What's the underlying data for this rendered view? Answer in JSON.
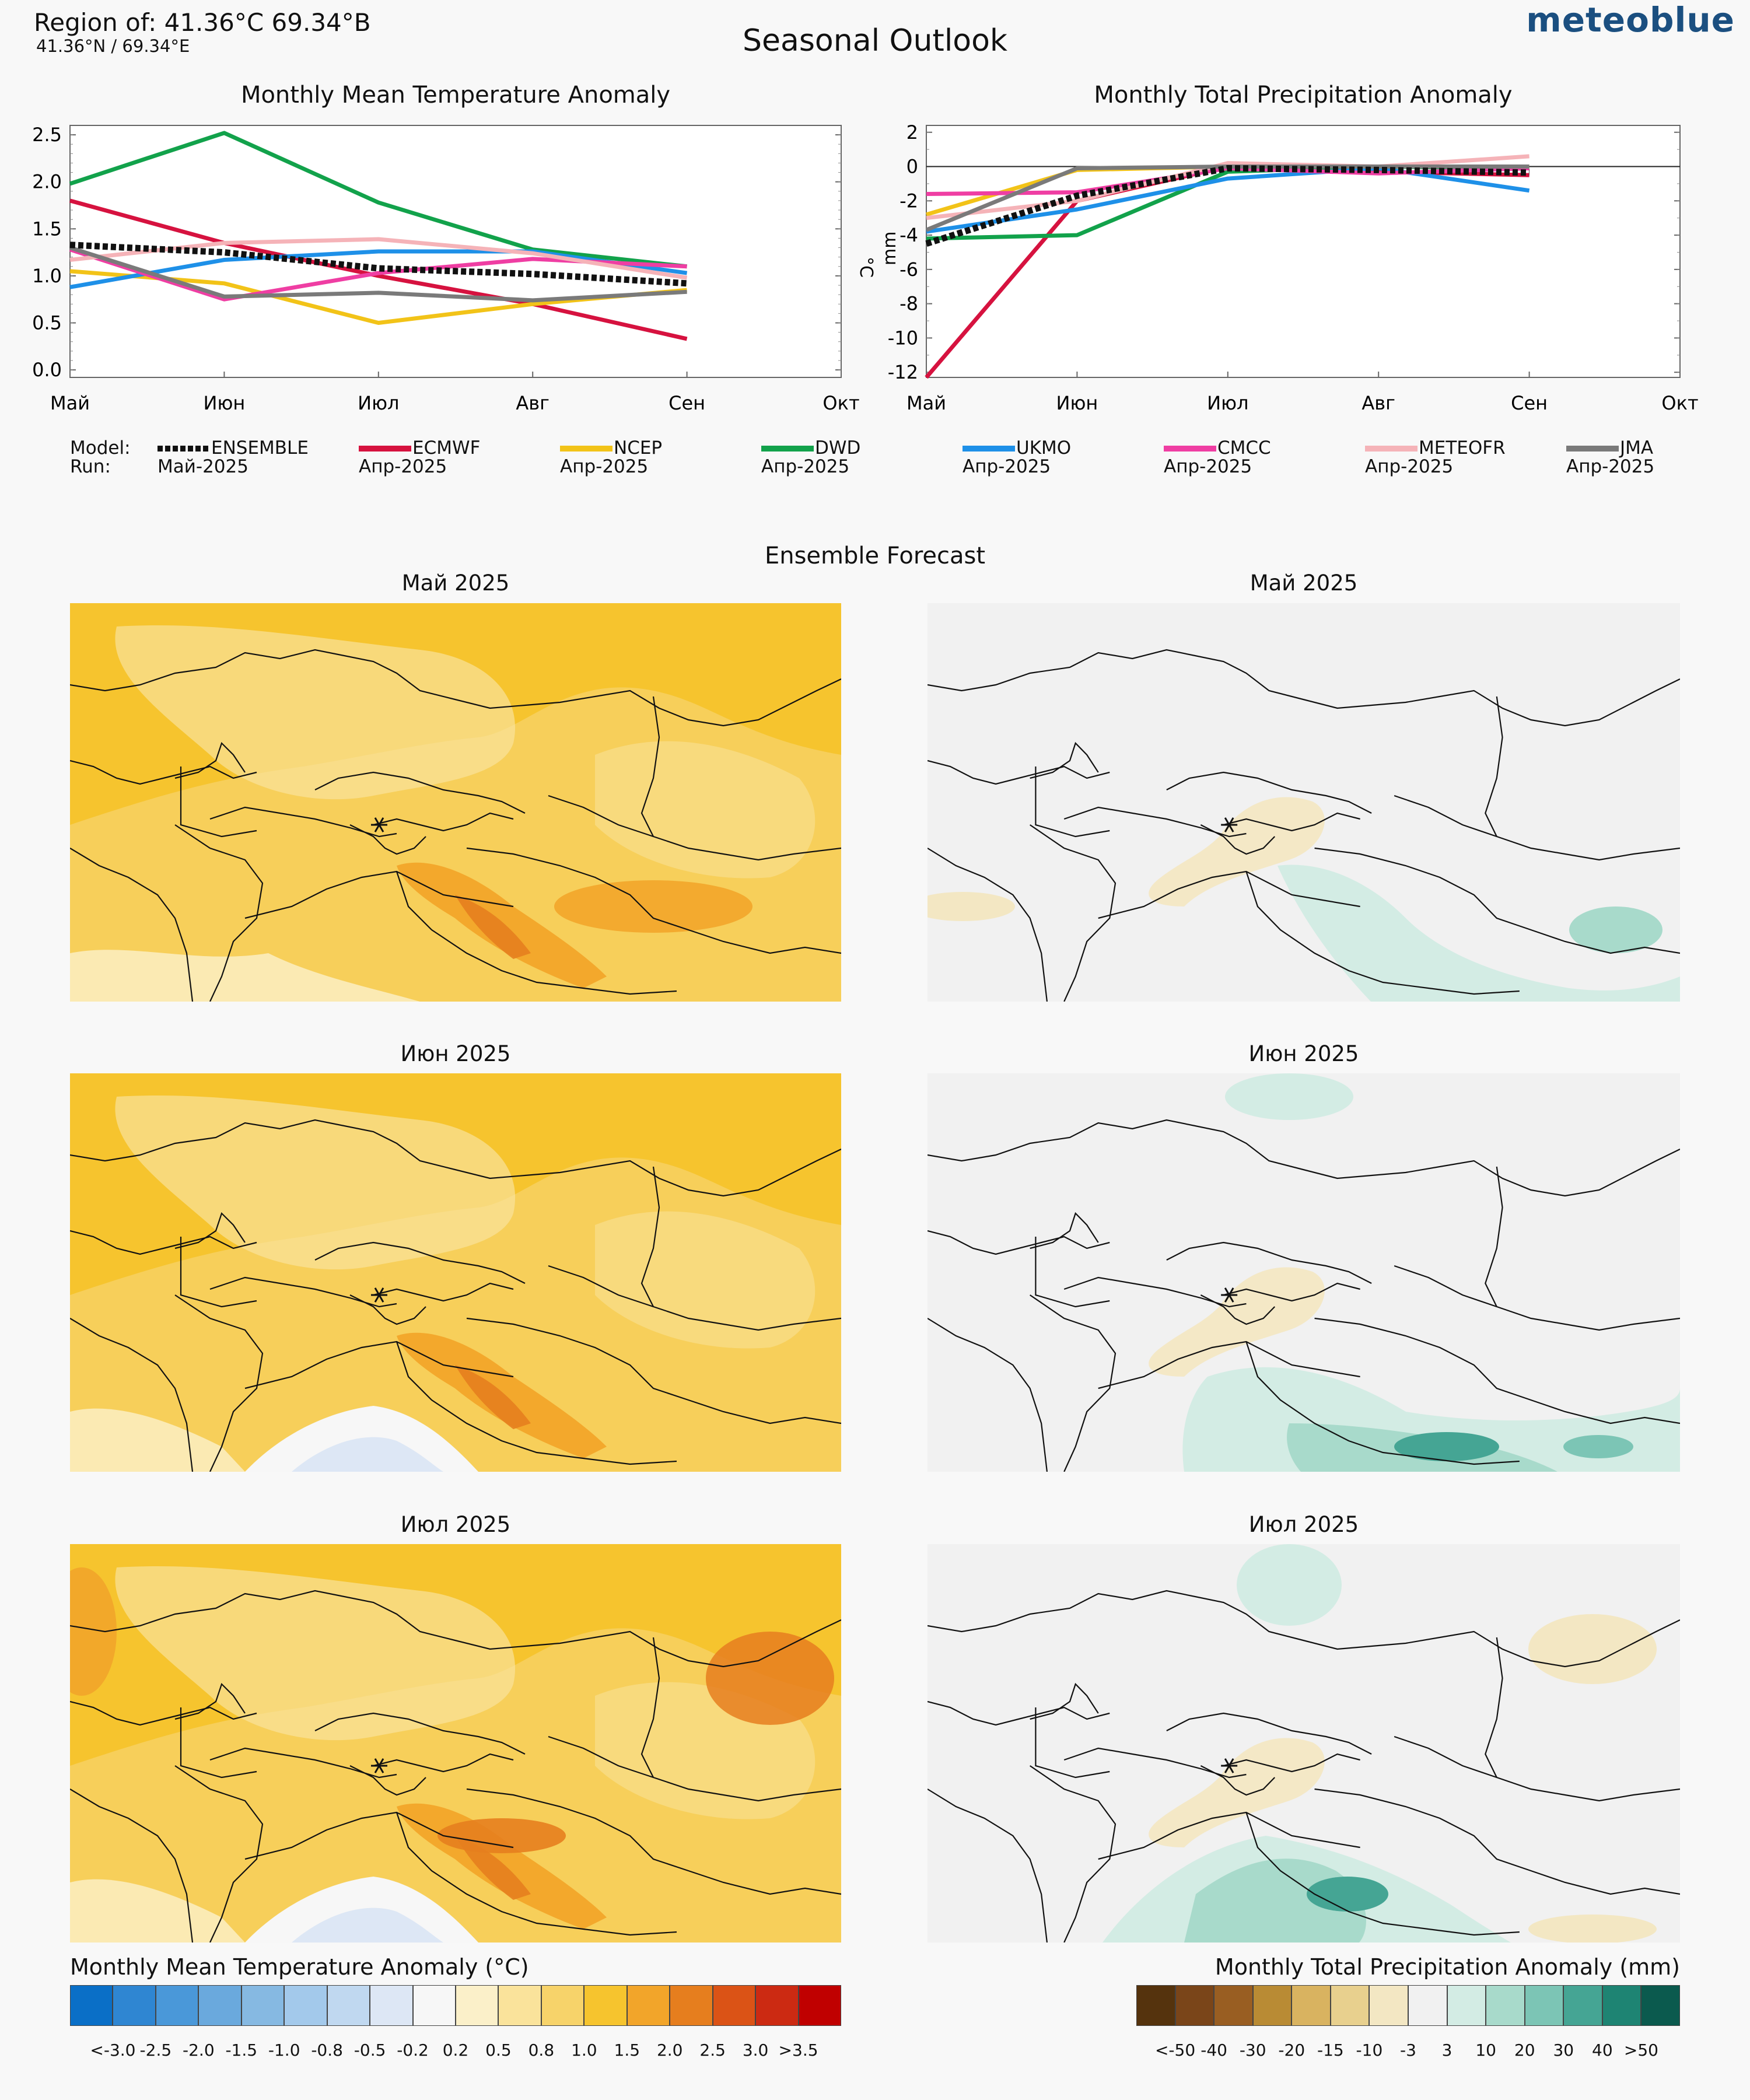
{
  "header": {
    "region": "Region of: 41.36°C 69.34°B",
    "coords": "41.36°N / 69.34°E",
    "title": "Seasonal Outlook",
    "brand": "meteoblue"
  },
  "months": [
    "Май",
    "Июн",
    "Июл",
    "Авг",
    "Сен",
    "Окт"
  ],
  "legend": {
    "model_label": "Model:",
    "run_label": "Run:",
    "models": [
      {
        "name": "ENSEMBLE",
        "run": "Май-2025",
        "color": "#111111",
        "dashed": true
      },
      {
        "name": "ECMWF",
        "run": "Апр-2025",
        "color": "#d6123f"
      },
      {
        "name": "NCEP",
        "run": "Апр-2025",
        "color": "#f2c318"
      },
      {
        "name": "DWD",
        "run": "Апр-2025",
        "color": "#12a24b"
      },
      {
        "name": "UKMO",
        "run": "Апр-2025",
        "color": "#1e90e8"
      },
      {
        "name": "CMCC",
        "run": "Апр-2025",
        "color": "#ef3ea3"
      },
      {
        "name": "METEOFR",
        "run": "Апр-2025",
        "color": "#f5b3b8"
      },
      {
        "name": "JMA",
        "run": "Апр-2025",
        "color": "#7a7a7a"
      }
    ]
  },
  "chart_data": [
    {
      "type": "line",
      "title": "Monthly Mean Temperature Anomaly",
      "x": [
        "Май",
        "Июн",
        "Июл",
        "Авг",
        "Сен"
      ],
      "xlim_labels": [
        "Май",
        "Июн",
        "Июл",
        "Авг",
        "Сен",
        "Окт"
      ],
      "ylabel": "",
      "ylim": [
        -0.08,
        2.6
      ],
      "yticks": [
        "0.0",
        "0.5",
        "1.0",
        "1.5",
        "2.0",
        "2.5"
      ],
      "series": [
        {
          "name": "ENSEMBLE",
          "values": [
            1.33,
            1.25,
            1.08,
            1.02,
            0.92
          ]
        },
        {
          "name": "ECMWF",
          "values": [
            1.8,
            1.35,
            1.0,
            0.7,
            0.33
          ]
        },
        {
          "name": "NCEP",
          "values": [
            1.05,
            0.92,
            0.5,
            0.7,
            0.85
          ]
        },
        {
          "name": "DWD",
          "values": [
            1.98,
            2.52,
            1.78,
            1.28,
            1.1
          ]
        },
        {
          "name": "UKMO",
          "values": [
            0.88,
            1.17,
            1.26,
            1.26,
            1.03
          ]
        },
        {
          "name": "CMCC",
          "values": [
            1.28,
            0.75,
            1.03,
            1.18,
            1.1
          ]
        },
        {
          "name": "METEOFR",
          "values": [
            1.17,
            1.35,
            1.39,
            1.24,
            0.98
          ]
        },
        {
          "name": "JMA",
          "values": [
            1.3,
            0.78,
            0.82,
            0.74,
            0.83
          ]
        }
      ]
    },
    {
      "type": "line",
      "title": "Monthly Total Precipitation Anomaly",
      "x": [
        "Май",
        "Июн",
        "Июл",
        "Авг",
        "Сен"
      ],
      "xlim_labels": [
        "Май",
        "Июн",
        "Июл",
        "Авг",
        "Сен",
        "Окт"
      ],
      "ylabel": "mm",
      "ylim": [
        -12.3,
        2.4
      ],
      "yticks": [
        "-12",
        "-10",
        "-8",
        "-6",
        "-4",
        "-2",
        "0",
        "2"
      ],
      "series": [
        {
          "name": "ENSEMBLE",
          "values": [
            -4.5,
            -1.7,
            -0.1,
            -0.2,
            -0.35
          ]
        },
        {
          "name": "ECMWF",
          "values": [
            -12.3,
            -2.0,
            0.0,
            -0.3,
            -0.5
          ]
        },
        {
          "name": "NCEP",
          "values": [
            -2.8,
            -0.2,
            0.0,
            0.0,
            0.0
          ]
        },
        {
          "name": "DWD",
          "values": [
            -4.2,
            -4.0,
            -0.3,
            0.0,
            -0.1
          ]
        },
        {
          "name": "UKMO",
          "values": [
            -3.8,
            -2.5,
            -0.7,
            -0.1,
            -1.4
          ]
        },
        {
          "name": "CMCC",
          "values": [
            -1.6,
            -1.5,
            -0.1,
            -0.4,
            -0.1
          ]
        },
        {
          "name": "METEOFR",
          "values": [
            -3.0,
            -2.0,
            0.2,
            0.0,
            0.6
          ]
        },
        {
          "name": "JMA",
          "values": [
            -3.7,
            -0.1,
            0.0,
            0.0,
            0.0
          ]
        }
      ]
    }
  ],
  "ensemble": {
    "title": "Ensemble Forecast",
    "maps": [
      {
        "title": "Май 2025",
        "kind": "temperature"
      },
      {
        "title": "Май 2025",
        "kind": "precipitation"
      },
      {
        "title": "Июн 2025",
        "kind": "temperature"
      },
      {
        "title": "Июн 2025",
        "kind": "precipitation"
      },
      {
        "title": "Июл 2025",
        "kind": "temperature"
      },
      {
        "title": "Июл 2025",
        "kind": "precipitation"
      }
    ]
  },
  "colorbars": {
    "temperature": {
      "title": "Monthly Mean Temperature Anomaly (°C)",
      "colors": [
        "#0a6fc7",
        "#2f86d2",
        "#4a98d9",
        "#6aa9dd",
        "#86b9e2",
        "#a3c9eb",
        "#c0d8f0",
        "#dde7f5",
        "#f7f7f7",
        "#fbf0c9",
        "#fae39b",
        "#f7d36a",
        "#f6c42e",
        "#f2a52a",
        "#e67e1e",
        "#db5316",
        "#cc2a12",
        "#c00000"
      ],
      "labels": [
        "<-3.0",
        "-2.5",
        "-2.0",
        "-1.5",
        "-1.0",
        "-0.8",
        "-0.5",
        "-0.2",
        "0.2",
        "0.5",
        "0.8",
        "1.0",
        "1.5",
        "2.0",
        "2.5",
        "3.0",
        ">3.5"
      ]
    },
    "precipitation": {
      "title": "Monthly Total Precipitation Anomaly (mm)",
      "colors": [
        "#55330d",
        "#7a4519",
        "#995e22",
        "#b98b34",
        "#d9b360",
        "#e8d08e",
        "#f3e7c3",
        "#f1f1f1",
        "#d3ece4",
        "#a8dacb",
        "#7cc5b5",
        "#45a594",
        "#1e8473",
        "#0b5a4e"
      ],
      "labels": [
        "<-50",
        "-40",
        "-30",
        "-20",
        "-15",
        "-10",
        "-3",
        "3",
        "10",
        "20",
        "30",
        "40",
        ">50"
      ]
    }
  }
}
